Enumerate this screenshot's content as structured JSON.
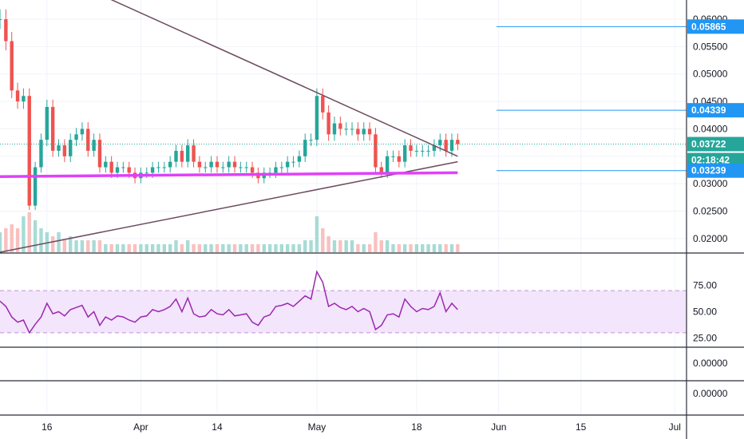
{
  "chart_data": [
    {
      "type": "candlestick",
      "panel": "price",
      "yaxis_ticks": [
        "0.06000",
        "0.05500",
        "0.05000",
        "0.04500",
        "0.04000",
        "0.03500",
        "0.03000",
        "0.02500",
        "0.02000"
      ],
      "ylim": [
        0.0175,
        0.0635
      ],
      "xlim": [
        "2020-03-08",
        "2020-07-03"
      ],
      "close_series": [
        [
          "2020-03-08",
          0.06
        ],
        [
          "2020-03-09",
          0.056
        ],
        [
          "2020-03-10",
          0.047
        ],
        [
          "2020-03-11",
          0.045
        ],
        [
          "2020-03-12",
          0.046
        ],
        [
          "2020-03-13",
          0.026
        ],
        [
          "2020-03-14",
          0.033
        ],
        [
          "2020-03-15",
          0.038
        ],
        [
          "2020-03-16",
          0.044
        ],
        [
          "2020-03-17",
          0.036
        ],
        [
          "2020-03-18",
          0.037
        ],
        [
          "2020-03-19",
          0.035
        ],
        [
          "2020-03-20",
          0.038
        ],
        [
          "2020-03-21",
          0.039
        ],
        [
          "2020-03-22",
          0.04
        ],
        [
          "2020-03-23",
          0.036
        ],
        [
          "2020-03-24",
          0.038
        ],
        [
          "2020-03-25",
          0.033
        ],
        [
          "2020-03-26",
          0.034
        ],
        [
          "2020-03-27",
          0.032
        ],
        [
          "2020-03-28",
          0.033
        ],
        [
          "2020-03-29",
          0.033
        ],
        [
          "2020-03-30",
          0.032
        ],
        [
          "2020-03-31",
          0.031
        ],
        [
          "2020-04-01",
          0.032
        ],
        [
          "2020-04-02",
          0.032
        ],
        [
          "2020-04-03",
          0.033
        ],
        [
          "2020-04-04",
          0.033
        ],
        [
          "2020-04-05",
          0.033
        ],
        [
          "2020-04-06",
          0.034
        ],
        [
          "2020-04-07",
          0.036
        ],
        [
          "2020-04-08",
          0.034
        ],
        [
          "2020-04-09",
          0.037
        ],
        [
          "2020-04-10",
          0.034
        ],
        [
          "2020-04-11",
          0.033
        ],
        [
          "2020-04-12",
          0.033
        ],
        [
          "2020-04-13",
          0.034
        ],
        [
          "2020-04-14",
          0.033
        ],
        [
          "2020-04-15",
          0.033
        ],
        [
          "2020-04-16",
          0.034
        ],
        [
          "2020-04-17",
          0.033
        ],
        [
          "2020-04-18",
          0.033
        ],
        [
          "2020-04-19",
          0.033
        ],
        [
          "2020-04-20",
          0.032
        ],
        [
          "2020-04-21",
          0.031
        ],
        [
          "2020-04-22",
          0.032
        ],
        [
          "2020-04-23",
          0.032
        ],
        [
          "2020-04-24",
          0.033
        ],
        [
          "2020-04-25",
          0.033
        ],
        [
          "2020-04-26",
          0.034
        ],
        [
          "2020-04-27",
          0.034
        ],
        [
          "2020-04-28",
          0.035
        ],
        [
          "2020-04-29",
          0.038
        ],
        [
          "2020-04-30",
          0.038
        ],
        [
          "2020-05-01",
          0.046
        ],
        [
          "2020-05-02",
          0.043
        ],
        [
          "2020-05-03",
          0.039
        ],
        [
          "2020-05-04",
          0.041
        ],
        [
          "2020-05-05",
          0.04
        ],
        [
          "2020-05-06",
          0.04
        ],
        [
          "2020-05-07",
          0.04
        ],
        [
          "2020-05-08",
          0.039
        ],
        [
          "2020-05-09",
          0.04
        ],
        [
          "2020-05-10",
          0.039
        ],
        [
          "2020-05-11",
          0.033
        ],
        [
          "2020-05-12",
          0.032
        ],
        [
          "2020-05-13",
          0.035
        ],
        [
          "2020-05-14",
          0.035
        ],
        [
          "2020-05-15",
          0.034
        ],
        [
          "2020-05-16",
          0.037
        ],
        [
          "2020-05-17",
          0.036
        ],
        [
          "2020-05-18",
          0.036
        ],
        [
          "2020-05-19",
          0.036
        ],
        [
          "2020-05-20",
          0.036
        ],
        [
          "2020-05-21",
          0.037
        ],
        [
          "2020-05-22",
          0.038
        ],
        [
          "2020-05-23",
          0.036
        ],
        [
          "2020-05-24",
          0.038
        ],
        [
          "2020-05-25",
          0.0372
        ]
      ],
      "volume_relative": [
        0.5,
        0.6,
        0.7,
        0.6,
        0.9,
        1.0,
        0.8,
        0.6,
        0.5,
        0.4,
        0.5,
        0.3,
        0.4,
        0.3,
        0.3,
        0.3,
        0.3,
        0.3,
        0.2,
        0.2,
        0.2,
        0.2,
        0.2,
        0.2,
        0.2,
        0.2,
        0.2,
        0.2,
        0.2,
        0.2,
        0.3,
        0.2,
        0.3,
        0.2,
        0.2,
        0.2,
        0.2,
        0.2,
        0.2,
        0.2,
        0.2,
        0.2,
        0.2,
        0.2,
        0.2,
        0.2,
        0.2,
        0.2,
        0.2,
        0.2,
        0.2,
        0.2,
        0.3,
        0.3,
        0.9,
        0.6,
        0.4,
        0.3,
        0.3,
        0.3,
        0.3,
        0.2,
        0.2,
        0.2,
        0.5,
        0.3,
        0.3,
        0.2,
        0.2,
        0.2,
        0.2,
        0.2,
        0.2,
        0.2,
        0.2,
        0.2,
        0.2,
        0.2,
        0.2
      ],
      "drawings": {
        "descending_trendline": [
          [
            "2020-03-24",
            0.065
          ],
          [
            "2020-05-25",
            0.035
          ]
        ],
        "ascending_trendline": [
          [
            "2020-03-08",
            0.0175
          ],
          [
            "2020-05-25",
            0.034
          ]
        ],
        "horizontal_support": [
          [
            "2020-03-08",
            0.0313
          ],
          [
            "2020-05-25",
            0.032
          ]
        ],
        "price_level_lines": [
          0.05865,
          0.04339,
          0.03239
        ]
      },
      "price_badges": [
        {
          "label": "0.05865",
          "value": 0.05865,
          "color": "#2196f3"
        },
        {
          "label": "0.04339",
          "value": 0.04339,
          "color": "#2196f3"
        },
        {
          "label": "0.03722",
          "value": 0.03722,
          "color": "#26a69a"
        },
        {
          "label": "02:18:42",
          "value": 0.03722,
          "color": "#26a69a",
          "sub": true
        },
        {
          "label": "0.03239",
          "value": 0.03239,
          "color": "#2196f3"
        }
      ],
      "colors": {
        "up": "#26a69a",
        "down": "#ef5350",
        "volume_up": "#a8dbd5",
        "volume_down": "#f9c0bf",
        "trendline": "#6d4c5e",
        "support": "#e040fb"
      }
    },
    {
      "type": "line",
      "panel": "rsi",
      "yaxis_ticks": [
        "75.00",
        "50.00",
        "25.00"
      ],
      "ylim": [
        17,
        105
      ],
      "band": [
        30,
        70
      ],
      "series": [
        {
          "values": [
            [
              "2020-03-08",
              60
            ],
            [
              "2020-03-09",
              55
            ],
            [
              "2020-03-10",
              45
            ],
            [
              "2020-03-11",
              40
            ],
            [
              "2020-03-12",
              42
            ],
            [
              "2020-03-13",
              30
            ],
            [
              "2020-03-14",
              38
            ],
            [
              "2020-03-15",
              45
            ],
            [
              "2020-03-16",
              58
            ],
            [
              "2020-03-17",
              48
            ],
            [
              "2020-03-18",
              50
            ],
            [
              "2020-03-19",
              46
            ],
            [
              "2020-03-20",
              52
            ],
            [
              "2020-03-21",
              54
            ],
            [
              "2020-03-22",
              56
            ],
            [
              "2020-03-23",
              45
            ],
            [
              "2020-03-24",
              50
            ],
            [
              "2020-03-25",
              37
            ],
            [
              "2020-03-26",
              45
            ],
            [
              "2020-03-27",
              42
            ],
            [
              "2020-03-28",
              46
            ],
            [
              "2020-03-29",
              45
            ],
            [
              "2020-03-30",
              42
            ],
            [
              "2020-03-31",
              40
            ],
            [
              "2020-04-01",
              45
            ],
            [
              "2020-04-02",
              46
            ],
            [
              "2020-04-03",
              52
            ],
            [
              "2020-04-04",
              50
            ],
            [
              "2020-04-05",
              52
            ],
            [
              "2020-04-06",
              55
            ],
            [
              "2020-04-07",
              62
            ],
            [
              "2020-04-08",
              50
            ],
            [
              "2020-04-09",
              63
            ],
            [
              "2020-04-10",
              48
            ],
            [
              "2020-04-11",
              45
            ],
            [
              "2020-04-12",
              46
            ],
            [
              "2020-04-13",
              52
            ],
            [
              "2020-04-14",
              48
            ],
            [
              "2020-04-15",
              47
            ],
            [
              "2020-04-16",
              52
            ],
            [
              "2020-04-17",
              46
            ],
            [
              "2020-04-18",
              47
            ],
            [
              "2020-04-19",
              48
            ],
            [
              "2020-04-20",
              40
            ],
            [
              "2020-04-21",
              37
            ],
            [
              "2020-04-22",
              45
            ],
            [
              "2020-04-23",
              47
            ],
            [
              "2020-04-24",
              55
            ],
            [
              "2020-04-25",
              56
            ],
            [
              "2020-04-26",
              58
            ],
            [
              "2020-04-27",
              55
            ],
            [
              "2020-04-28",
              60
            ],
            [
              "2020-04-29",
              65
            ],
            [
              "2020-04-30",
              62
            ],
            [
              "2020-05-01",
              88
            ],
            [
              "2020-05-02",
              78
            ],
            [
              "2020-05-03",
              55
            ],
            [
              "2020-05-04",
              58
            ],
            [
              "2020-05-05",
              54
            ],
            [
              "2020-05-06",
              52
            ],
            [
              "2020-05-07",
              55
            ],
            [
              "2020-05-08",
              50
            ],
            [
              "2020-05-09",
              53
            ],
            [
              "2020-05-10",
              50
            ],
            [
              "2020-05-11",
              33
            ],
            [
              "2020-05-12",
              37
            ],
            [
              "2020-05-13",
              47
            ],
            [
              "2020-05-14",
              48
            ],
            [
              "2020-05-15",
              45
            ],
            [
              "2020-05-16",
              62
            ],
            [
              "2020-05-17",
              55
            ],
            [
              "2020-05-18",
              50
            ],
            [
              "2020-05-19",
              53
            ],
            [
              "2020-05-20",
              52
            ],
            [
              "2020-05-21",
              55
            ],
            [
              "2020-05-22",
              68
            ],
            [
              "2020-05-23",
              50
            ],
            [
              "2020-05-24",
              58
            ],
            [
              "2020-05-25",
              52
            ]
          ],
          "color": "#9c27b0"
        }
      ],
      "colors": {
        "band_fill": "#f3e5fb",
        "band_line": "#c490d9"
      }
    },
    {
      "type": "line",
      "panel": "indicator_a",
      "yaxis_ticks": [
        "0.00000"
      ],
      "series": []
    },
    {
      "type": "line",
      "panel": "indicator_b",
      "yaxis_ticks": [
        "0.00000"
      ],
      "series": []
    }
  ],
  "xaxis": {
    "ticks": [
      {
        "label": "16",
        "date": "2020-03-16"
      },
      {
        "label": "Apr",
        "date": "2020-04-01"
      },
      {
        "label": "14",
        "date": "2020-04-14"
      },
      {
        "label": "May",
        "date": "2020-05-01"
      },
      {
        "label": "18",
        "date": "2020-05-18"
      },
      {
        "label": "Jun",
        "date": "2020-06-01"
      },
      {
        "label": "15",
        "date": "2020-06-15"
      },
      {
        "label": "Jul",
        "date": "2020-07-01"
      }
    ]
  }
}
